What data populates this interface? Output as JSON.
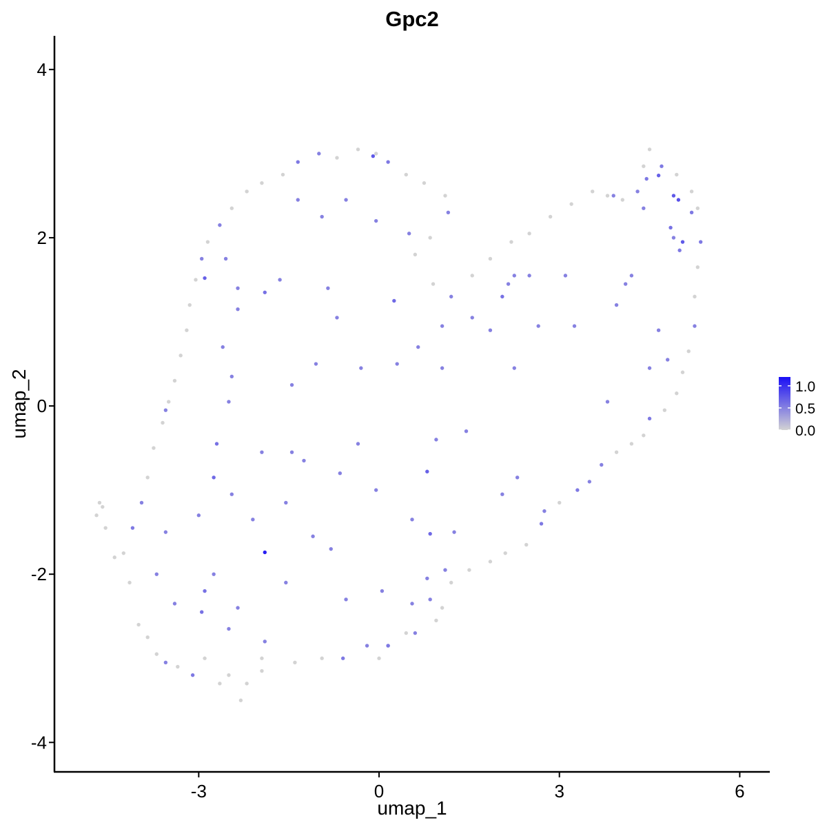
{
  "chart_data": {
    "type": "scatter",
    "title": "Gpc2",
    "xlabel": "umap_1",
    "ylabel": "umap_2",
    "xlim": [
      -5.4,
      6.5
    ],
    "ylim": [
      -4.35,
      4.4
    ],
    "xticks": [
      -3,
      0,
      3,
      6
    ],
    "yticks": [
      -4,
      -2,
      0,
      2,
      4
    ],
    "xtick_labels": [
      "-3",
      "0",
      "3",
      "6"
    ],
    "ytick_labels": [
      "-4",
      "-2",
      "0",
      "2",
      "4"
    ],
    "grid": false,
    "legend": {
      "position": "right",
      "type": "colorbar",
      "ticks": [
        1.0,
        0.5,
        0.0
      ],
      "tick_labels": [
        "1.0",
        "0.5",
        "0.0"
      ],
      "range": [
        0.0,
        1.2
      ]
    },
    "colors": {
      "low": "#d3d3d3",
      "high": "#1a0ff5"
    },
    "points": [
      {
        "x": -4.7,
        "y": -1.3,
        "v": 0
      },
      {
        "x": -4.6,
        "y": -1.2,
        "v": 0
      },
      {
        "x": -4.65,
        "y": -1.15,
        "v": 0
      },
      {
        "x": -4.55,
        "y": -1.45,
        "v": 0
      },
      {
        "x": -4.4,
        "y": -1.8,
        "v": 0
      },
      {
        "x": -4.15,
        "y": -2.1,
        "v": 0
      },
      {
        "x": -4.0,
        "y": -2.6,
        "v": 0
      },
      {
        "x": -3.85,
        "y": -2.75,
        "v": 0
      },
      {
        "x": -3.7,
        "y": -2.95,
        "v": 0
      },
      {
        "x": -3.55,
        "y": -3.05,
        "v": 0.5
      },
      {
        "x": -3.35,
        "y": -3.1,
        "v": 0
      },
      {
        "x": -3.1,
        "y": -3.2,
        "v": 0.55
      },
      {
        "x": -2.9,
        "y": -3.0,
        "v": 0
      },
      {
        "x": -2.65,
        "y": -3.3,
        "v": 0
      },
      {
        "x": -2.5,
        "y": -3.2,
        "v": 0
      },
      {
        "x": -2.3,
        "y": -3.5,
        "v": 0
      },
      {
        "x": -2.2,
        "y": -3.3,
        "v": 0
      },
      {
        "x": -1.95,
        "y": -3.15,
        "v": 0
      },
      {
        "x": -1.95,
        "y": -3.0,
        "v": 0
      },
      {
        "x": -1.4,
        "y": -3.05,
        "v": 0
      },
      {
        "x": -0.95,
        "y": -3.0,
        "v": 0
      },
      {
        "x": -0.6,
        "y": -3.0,
        "v": 0.55
      },
      {
        "x": -0.2,
        "y": -2.85,
        "v": 0.5
      },
      {
        "x": 0.0,
        "y": -3.0,
        "v": 0
      },
      {
        "x": 0.15,
        "y": -2.85,
        "v": 0.55
      },
      {
        "x": 0.45,
        "y": -2.7,
        "v": 0
      },
      {
        "x": 0.6,
        "y": -2.7,
        "v": 0.5
      },
      {
        "x": 0.95,
        "y": -2.55,
        "v": 0
      },
      {
        "x": 1.05,
        "y": -2.4,
        "v": 0
      },
      {
        "x": 0.85,
        "y": -2.3,
        "v": 0.5
      },
      {
        "x": 1.2,
        "y": -2.1,
        "v": 0
      },
      {
        "x": 1.5,
        "y": -1.95,
        "v": 0
      },
      {
        "x": 1.85,
        "y": -1.85,
        "v": 0
      },
      {
        "x": 2.1,
        "y": -1.75,
        "v": 0
      },
      {
        "x": 2.45,
        "y": -1.65,
        "v": 0
      },
      {
        "x": 2.7,
        "y": -1.4,
        "v": 0.55
      },
      {
        "x": 2.75,
        "y": -1.25,
        "v": 0.5
      },
      {
        "x": 3.0,
        "y": -1.15,
        "v": 0
      },
      {
        "x": 3.3,
        "y": -1.0,
        "v": 0.55
      },
      {
        "x": 3.5,
        "y": -0.9,
        "v": 0.5
      },
      {
        "x": 3.7,
        "y": -0.7,
        "v": 0.5
      },
      {
        "x": 3.95,
        "y": -0.55,
        "v": 0
      },
      {
        "x": 4.2,
        "y": -0.45,
        "v": 0
      },
      {
        "x": 4.4,
        "y": -0.35,
        "v": 0
      },
      {
        "x": 4.5,
        "y": -0.15,
        "v": 0.55
      },
      {
        "x": 4.75,
        "y": -0.05,
        "v": 0
      },
      {
        "x": 4.95,
        "y": 0.15,
        "v": 0
      },
      {
        "x": 5.05,
        "y": 0.4,
        "v": 0
      },
      {
        "x": 5.15,
        "y": 0.65,
        "v": 0
      },
      {
        "x": 5.25,
        "y": 0.95,
        "v": 0.5
      },
      {
        "x": 5.25,
        "y": 1.3,
        "v": 0
      },
      {
        "x": 5.3,
        "y": 1.65,
        "v": 0
      },
      {
        "x": 5.35,
        "y": 1.95,
        "v": 0.55
      },
      {
        "x": 5.3,
        "y": 2.35,
        "v": 0
      },
      {
        "x": 5.2,
        "y": 2.55,
        "v": 0
      },
      {
        "x": 4.95,
        "y": 2.75,
        "v": 0
      },
      {
        "x": 4.7,
        "y": 2.85,
        "v": 0.55
      },
      {
        "x": 4.5,
        "y": 3.05,
        "v": 0
      },
      {
        "x": 4.4,
        "y": 2.85,
        "v": 0
      },
      {
        "x": 4.3,
        "y": 2.55,
        "v": 0.5
      },
      {
        "x": 4.05,
        "y": 2.45,
        "v": 0
      },
      {
        "x": 3.8,
        "y": 2.5,
        "v": 0
      },
      {
        "x": 3.55,
        "y": 2.55,
        "v": 0
      },
      {
        "x": 3.2,
        "y": 2.4,
        "v": 0
      },
      {
        "x": 2.85,
        "y": 2.25,
        "v": 0
      },
      {
        "x": 2.5,
        "y": 2.05,
        "v": 0
      },
      {
        "x": 2.2,
        "y": 1.95,
        "v": 0
      },
      {
        "x": 1.85,
        "y": 1.75,
        "v": 0
      },
      {
        "x": 1.55,
        "y": 1.55,
        "v": 0
      },
      {
        "x": 1.2,
        "y": 1.3,
        "v": 0.5
      },
      {
        "x": 0.9,
        "y": 1.45,
        "v": 0
      },
      {
        "x": 0.6,
        "y": 1.8,
        "v": 0
      },
      {
        "x": 0.85,
        "y": 2.0,
        "v": 0
      },
      {
        "x": 1.15,
        "y": 2.3,
        "v": 0.5
      },
      {
        "x": 1.1,
        "y": 2.5,
        "v": 0
      },
      {
        "x": 0.75,
        "y": 2.65,
        "v": 0
      },
      {
        "x": 0.45,
        "y": 2.75,
        "v": 0
      },
      {
        "x": 0.15,
        "y": 2.9,
        "v": 0.55
      },
      {
        "x": -0.05,
        "y": 3.0,
        "v": 0
      },
      {
        "x": -0.35,
        "y": 3.05,
        "v": 0
      },
      {
        "x": -0.7,
        "y": 2.95,
        "v": 0
      },
      {
        "x": -1.0,
        "y": 3.0,
        "v": 0.5
      },
      {
        "x": -1.35,
        "y": 2.9,
        "v": 0.55
      },
      {
        "x": -1.6,
        "y": 2.75,
        "v": 0
      },
      {
        "x": -1.95,
        "y": 2.65,
        "v": 0
      },
      {
        "x": -2.2,
        "y": 2.55,
        "v": 0
      },
      {
        "x": -2.45,
        "y": 2.35,
        "v": 0
      },
      {
        "x": -2.65,
        "y": 2.15,
        "v": 0.5
      },
      {
        "x": -2.85,
        "y": 1.95,
        "v": 0
      },
      {
        "x": -2.95,
        "y": 1.75,
        "v": 0.5
      },
      {
        "x": -3.05,
        "y": 1.5,
        "v": 0
      },
      {
        "x": -3.15,
        "y": 1.2,
        "v": 0
      },
      {
        "x": -3.2,
        "y": 0.9,
        "v": 0
      },
      {
        "x": -3.3,
        "y": 0.6,
        "v": 0
      },
      {
        "x": -3.4,
        "y": 0.3,
        "v": 0
      },
      {
        "x": -3.5,
        "y": 0.05,
        "v": 0
      },
      {
        "x": -3.6,
        "y": -0.2,
        "v": 0
      },
      {
        "x": -3.75,
        "y": -0.5,
        "v": 0
      },
      {
        "x": -3.85,
        "y": -0.85,
        "v": 0
      },
      {
        "x": -3.95,
        "y": -1.15,
        "v": 0.5
      },
      {
        "x": -4.1,
        "y": -1.45,
        "v": 0.55
      },
      {
        "x": -4.25,
        "y": -1.75,
        "v": 0
      },
      {
        "x": -3.55,
        "y": -0.05,
        "v": 0.5
      },
      {
        "x": -2.9,
        "y": 1.52,
        "v": 0.7
      },
      {
        "x": -2.7,
        "y": -0.45,
        "v": 0.6
      },
      {
        "x": -2.75,
        "y": -0.85,
        "v": 0.65
      },
      {
        "x": -1.9,
        "y": -1.74,
        "v": 1.1
      },
      {
        "x": -2.95,
        "y": -2.45,
        "v": 0.6
      },
      {
        "x": -2.9,
        "y": -2.2,
        "v": 0.6
      },
      {
        "x": -2.45,
        "y": -1.05,
        "v": 0.5
      },
      {
        "x": -1.9,
        "y": 1.35,
        "v": 0.6
      },
      {
        "x": -0.1,
        "y": 2.97,
        "v": 0.75
      },
      {
        "x": 0.25,
        "y": 1.25,
        "v": 0.65
      },
      {
        "x": 0.8,
        "y": -0.78,
        "v": 0.7
      },
      {
        "x": 0.85,
        "y": -1.52,
        "v": 0.65
      },
      {
        "x": 0.15,
        "y": -2.85,
        "v": 0.55
      },
      {
        "x": 2.05,
        "y": 1.3,
        "v": 0.6
      },
      {
        "x": 4.65,
        "y": 2.74,
        "v": 0.7
      },
      {
        "x": 4.9,
        "y": 2.5,
        "v": 0.75
      },
      {
        "x": 4.98,
        "y": 2.45,
        "v": 0.8
      },
      {
        "x": 5.05,
        "y": 1.95,
        "v": 0.75
      },
      {
        "x": 4.85,
        "y": 2.12,
        "v": 0.6
      },
      {
        "x": 5.2,
        "y": 2.3,
        "v": 0.55
      },
      {
        "x": 4.45,
        "y": 2.7,
        "v": 0.55
      },
      {
        "x": 4.9,
        "y": 2.0,
        "v": 0.5
      },
      {
        "x": 5.0,
        "y": 1.85,
        "v": 0.55
      },
      {
        "x": 4.1,
        "y": 1.45,
        "v": 0.5
      },
      {
        "x": 3.1,
        "y": 1.55,
        "v": 0.5
      },
      {
        "x": 2.25,
        "y": 1.55,
        "v": 0.5
      },
      {
        "x": 1.55,
        "y": 1.05,
        "v": 0.5
      },
      {
        "x": 1.05,
        "y": 0.95,
        "v": 0.5
      },
      {
        "x": 0.65,
        "y": 0.7,
        "v": 0.5
      },
      {
        "x": -0.7,
        "y": 1.05,
        "v": 0.5
      },
      {
        "x": -0.85,
        "y": 1.4,
        "v": 0.5
      },
      {
        "x": -1.65,
        "y": 1.5,
        "v": 0.5
      },
      {
        "x": -2.55,
        "y": 1.75,
        "v": 0.5
      },
      {
        "x": -2.35,
        "y": 1.15,
        "v": 0.5
      },
      {
        "x": -2.6,
        "y": 0.7,
        "v": 0.5
      },
      {
        "x": -2.45,
        "y": 0.35,
        "v": 0.5
      },
      {
        "x": -2.5,
        "y": 0.05,
        "v": 0.5
      },
      {
        "x": -1.45,
        "y": -0.55,
        "v": 0.5
      },
      {
        "x": -1.25,
        "y": -0.65,
        "v": 0.5
      },
      {
        "x": -0.65,
        "y": -0.8,
        "v": 0.5
      },
      {
        "x": -0.35,
        "y": -0.45,
        "v": 0.5
      },
      {
        "x": 0.95,
        "y": -0.4,
        "v": 0.5
      },
      {
        "x": 1.45,
        "y": -0.3,
        "v": 0.5
      },
      {
        "x": 2.05,
        "y": -1.05,
        "v": 0.5
      },
      {
        "x": 2.3,
        "y": -0.85,
        "v": 0.5
      },
      {
        "x": 3.8,
        "y": 0.05,
        "v": 0.5
      },
      {
        "x": 3.25,
        "y": 0.95,
        "v": 0.5
      },
      {
        "x": 2.65,
        "y": 0.95,
        "v": 0.5
      },
      {
        "x": 1.85,
        "y": 0.9,
        "v": 0.5
      },
      {
        "x": 2.25,
        "y": 0.45,
        "v": 0.5
      },
      {
        "x": 1.05,
        "y": 0.45,
        "v": 0.5
      },
      {
        "x": 0.3,
        "y": 0.5,
        "v": 0.5
      },
      {
        "x": -0.3,
        "y": 0.45,
        "v": 0.5
      },
      {
        "x": -1.05,
        "y": 0.5,
        "v": 0.5
      },
      {
        "x": -1.45,
        "y": 0.25,
        "v": 0.5
      },
      {
        "x": -1.95,
        "y": -0.55,
        "v": 0.5
      },
      {
        "x": -1.55,
        "y": -1.15,
        "v": 0.5
      },
      {
        "x": -2.1,
        "y": -1.35,
        "v": 0.5
      },
      {
        "x": -3.0,
        "y": -1.3,
        "v": 0.5
      },
      {
        "x": -3.55,
        "y": -1.5,
        "v": 0.5
      },
      {
        "x": -3.7,
        "y": -2.0,
        "v": 0.5
      },
      {
        "x": -3.4,
        "y": -2.35,
        "v": 0.5
      },
      {
        "x": -2.75,
        "y": -2.0,
        "v": 0.5
      },
      {
        "x": -2.35,
        "y": -2.4,
        "v": 0.5
      },
      {
        "x": -2.5,
        "y": -2.65,
        "v": 0.5
      },
      {
        "x": -1.9,
        "y": -2.8,
        "v": 0.5
      },
      {
        "x": -1.55,
        "y": -2.1,
        "v": 0.5
      },
      {
        "x": -1.1,
        "y": -1.55,
        "v": 0.5
      },
      {
        "x": -0.8,
        "y": -1.7,
        "v": 0.5
      },
      {
        "x": -0.55,
        "y": -2.3,
        "v": 0.5
      },
      {
        "x": 0.05,
        "y": -2.2,
        "v": 0.5
      },
      {
        "x": 0.55,
        "y": -2.35,
        "v": 0.5
      },
      {
        "x": 0.8,
        "y": -2.05,
        "v": 0.5
      },
      {
        "x": 1.1,
        "y": -1.95,
        "v": 0.5
      },
      {
        "x": 1.25,
        "y": -1.5,
        "v": 0.5
      },
      {
        "x": 0.55,
        "y": -1.35,
        "v": 0.5
      },
      {
        "x": -0.05,
        "y": -1.0,
        "v": 0.5
      },
      {
        "x": 2.15,
        "y": 1.45,
        "v": 0.5
      },
      {
        "x": 2.5,
        "y": 1.55,
        "v": 0.5
      },
      {
        "x": 3.9,
        "y": 2.5,
        "v": 0.5
      },
      {
        "x": 4.4,
        "y": 2.35,
        "v": 0.5
      },
      {
        "x": 3.95,
        "y": 1.2,
        "v": 0.5
      },
      {
        "x": 4.5,
        "y": 0.45,
        "v": 0.5
      },
      {
        "x": 4.8,
        "y": 0.55,
        "v": 0.5
      },
      {
        "x": 4.65,
        "y": 0.9,
        "v": 0.5
      },
      {
        "x": 4.2,
        "y": 1.55,
        "v": 0.5
      },
      {
        "x": -0.95,
        "y": 2.25,
        "v": 0.5
      },
      {
        "x": -0.55,
        "y": 2.45,
        "v": 0.5
      },
      {
        "x": -0.05,
        "y": 2.2,
        "v": 0.5
      },
      {
        "x": 0.5,
        "y": 2.05,
        "v": 0.5
      },
      {
        "x": -1.35,
        "y": 2.45,
        "v": 0.5
      },
      {
        "x": -2.35,
        "y": 1.4,
        "v": 0.5
      }
    ]
  }
}
